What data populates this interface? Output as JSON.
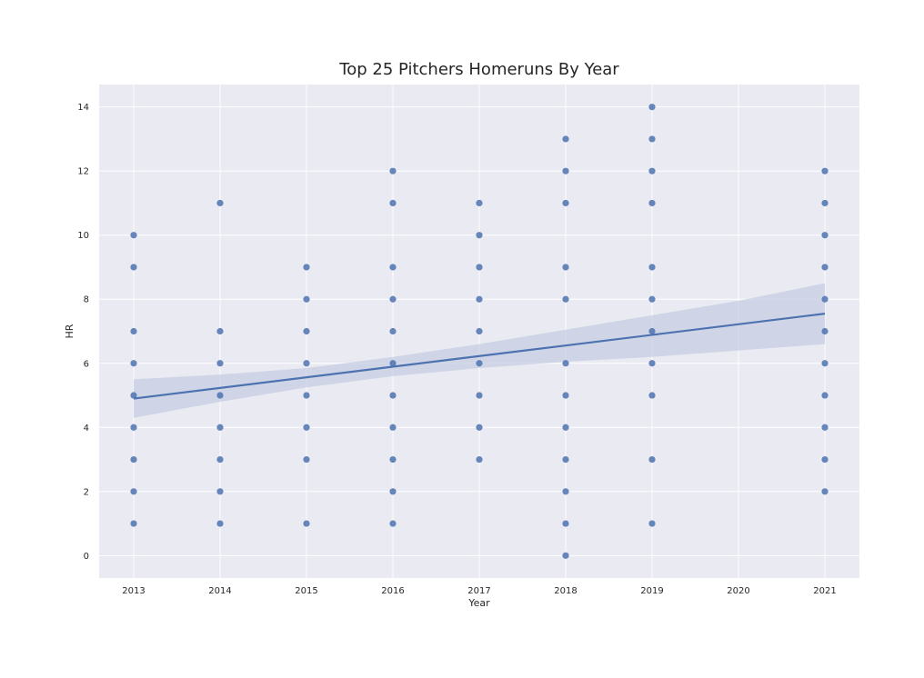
{
  "chart_data": {
    "type": "scatter",
    "title": "Top 25 Pitchers Homeruns By Year",
    "xlabel": "Year",
    "ylabel": "HR",
    "x_ticks": [
      2013,
      2014,
      2015,
      2016,
      2017,
      2018,
      2019,
      2020,
      2021
    ],
    "y_ticks": [
      0,
      2,
      4,
      6,
      8,
      10,
      12,
      14
    ],
    "xlim": [
      2012.6,
      2021.4
    ],
    "ylim": [
      -0.7,
      14.7
    ],
    "grid": true,
    "background": "#e9eaf2",
    "grid_color": "#ffffff",
    "point_color": "#4c72b0",
    "ci_color": "#c5cde1",
    "points": [
      {
        "x": 2013,
        "y": 10
      },
      {
        "x": 2013,
        "y": 9
      },
      {
        "x": 2013,
        "y": 7
      },
      {
        "x": 2013,
        "y": 6
      },
      {
        "x": 2013,
        "y": 5
      },
      {
        "x": 2013,
        "y": 4
      },
      {
        "x": 2013,
        "y": 3
      },
      {
        "x": 2013,
        "y": 2
      },
      {
        "x": 2013,
        "y": 1
      },
      {
        "x": 2014,
        "y": 11
      },
      {
        "x": 2014,
        "y": 7
      },
      {
        "x": 2014,
        "y": 6
      },
      {
        "x": 2014,
        "y": 5
      },
      {
        "x": 2014,
        "y": 4
      },
      {
        "x": 2014,
        "y": 3
      },
      {
        "x": 2014,
        "y": 2
      },
      {
        "x": 2014,
        "y": 1
      },
      {
        "x": 2015,
        "y": 9
      },
      {
        "x": 2015,
        "y": 8
      },
      {
        "x": 2015,
        "y": 7
      },
      {
        "x": 2015,
        "y": 6
      },
      {
        "x": 2015,
        "y": 5
      },
      {
        "x": 2015,
        "y": 4
      },
      {
        "x": 2015,
        "y": 3
      },
      {
        "x": 2015,
        "y": 1
      },
      {
        "x": 2016,
        "y": 12
      },
      {
        "x": 2016,
        "y": 11
      },
      {
        "x": 2016,
        "y": 9
      },
      {
        "x": 2016,
        "y": 8
      },
      {
        "x": 2016,
        "y": 7
      },
      {
        "x": 2016,
        "y": 6
      },
      {
        "x": 2016,
        "y": 5
      },
      {
        "x": 2016,
        "y": 4
      },
      {
        "x": 2016,
        "y": 3
      },
      {
        "x": 2016,
        "y": 2
      },
      {
        "x": 2016,
        "y": 1
      },
      {
        "x": 2017,
        "y": 11
      },
      {
        "x": 2017,
        "y": 10
      },
      {
        "x": 2017,
        "y": 9
      },
      {
        "x": 2017,
        "y": 8
      },
      {
        "x": 2017,
        "y": 7
      },
      {
        "x": 2017,
        "y": 6
      },
      {
        "x": 2017,
        "y": 5
      },
      {
        "x": 2017,
        "y": 4
      },
      {
        "x": 2017,
        "y": 3
      },
      {
        "x": 2018,
        "y": 13
      },
      {
        "x": 2018,
        "y": 12
      },
      {
        "x": 2018,
        "y": 11
      },
      {
        "x": 2018,
        "y": 9
      },
      {
        "x": 2018,
        "y": 8
      },
      {
        "x": 2018,
        "y": 6
      },
      {
        "x": 2018,
        "y": 5
      },
      {
        "x": 2018,
        "y": 4
      },
      {
        "x": 2018,
        "y": 3
      },
      {
        "x": 2018,
        "y": 2
      },
      {
        "x": 2018,
        "y": 1
      },
      {
        "x": 2018,
        "y": 0
      },
      {
        "x": 2019,
        "y": 14
      },
      {
        "x": 2019,
        "y": 13
      },
      {
        "x": 2019,
        "y": 12
      },
      {
        "x": 2019,
        "y": 11
      },
      {
        "x": 2019,
        "y": 9
      },
      {
        "x": 2019,
        "y": 8
      },
      {
        "x": 2019,
        "y": 7
      },
      {
        "x": 2019,
        "y": 6
      },
      {
        "x": 2019,
        "y": 5
      },
      {
        "x": 2019,
        "y": 3
      },
      {
        "x": 2019,
        "y": 1
      },
      {
        "x": 2021,
        "y": 12
      },
      {
        "x": 2021,
        "y": 11
      },
      {
        "x": 2021,
        "y": 10
      },
      {
        "x": 2021,
        "y": 9
      },
      {
        "x": 2021,
        "y": 8
      },
      {
        "x": 2021,
        "y": 7
      },
      {
        "x": 2021,
        "y": 6
      },
      {
        "x": 2021,
        "y": 5
      },
      {
        "x": 2021,
        "y": 4
      },
      {
        "x": 2021,
        "y": 3
      },
      {
        "x": 2021,
        "y": 2
      }
    ],
    "regression": {
      "x": [
        2013,
        2021
      ],
      "y": [
        4.9,
        7.55
      ]
    },
    "confidence_band": {
      "x": [
        2013,
        2014,
        2015,
        2016,
        2017,
        2018,
        2019,
        2020,
        2021
      ],
      "lower": [
        4.3,
        4.8,
        5.25,
        5.6,
        5.85,
        6.05,
        6.2,
        6.4,
        6.6
      ],
      "upper": [
        5.5,
        5.65,
        5.85,
        6.2,
        6.6,
        7.05,
        7.5,
        7.95,
        8.5
      ]
    }
  }
}
